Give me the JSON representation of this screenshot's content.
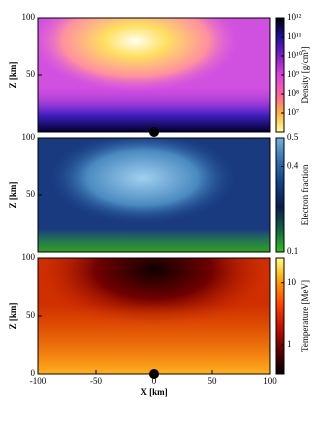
{
  "chart_data": [
    {
      "type": "heatmap",
      "ylabel": "Z [km]",
      "xlim": [
        -100,
        100
      ],
      "ylim": [
        0,
        100
      ],
      "yticks": [
        50,
        100
      ],
      "colorbar": {
        "label": "Density [g/cm³]",
        "log": true,
        "clim": [
          1000000,
          1000000000000
        ],
        "ticks": [
          {
            "value": 10000000,
            "label": "10⁷"
          },
          {
            "value": 100000000,
            "label": "10⁸"
          },
          {
            "value": 1000000000,
            "label": "10⁹"
          },
          {
            "value": 10000000000,
            "label": "10¹⁰"
          },
          {
            "value": 100000000000,
            "label": "10¹¹"
          },
          {
            "value": 1000000000000,
            "label": "10¹²"
          }
        ],
        "colormap": [
          "#ffff99",
          "#ffb040",
          "#ff60a0",
          "#e040e0",
          "#8020c0",
          "#2010a0",
          "#000000"
        ]
      }
    },
    {
      "type": "heatmap",
      "ylabel": "Z [km]",
      "xlim": [
        -100,
        100
      ],
      "ylim": [
        0,
        100
      ],
      "yticks": [
        50,
        100
      ],
      "colorbar": {
        "label": "Electron fraction",
        "log": false,
        "clim": [
          0.1,
          0.5
        ],
        "ticks": [
          0.1,
          0.4,
          0.5
        ],
        "colormap": [
          "#30c020",
          "#106040",
          "#0a1a50",
          "#104080",
          "#3070b0",
          "#70b0d8"
        ]
      }
    },
    {
      "type": "heatmap",
      "ylabel": "Z [km]",
      "xlabel": "X [km]",
      "xlim": [
        -100,
        100
      ],
      "ylim": [
        0,
        100
      ],
      "yticks": [
        0,
        50,
        100
      ],
      "xticks": [
        -100,
        -50,
        0,
        50,
        100
      ],
      "colorbar": {
        "label": "Temperature [MeV]",
        "log": true,
        "clim": [
          0.34,
          25
        ],
        "ticks": [
          1,
          10
        ],
        "colormap": [
          "#000000",
          "#600000",
          "#c01000",
          "#ff4000",
          "#ffa000",
          "#ffff80"
        ]
      }
    }
  ]
}
